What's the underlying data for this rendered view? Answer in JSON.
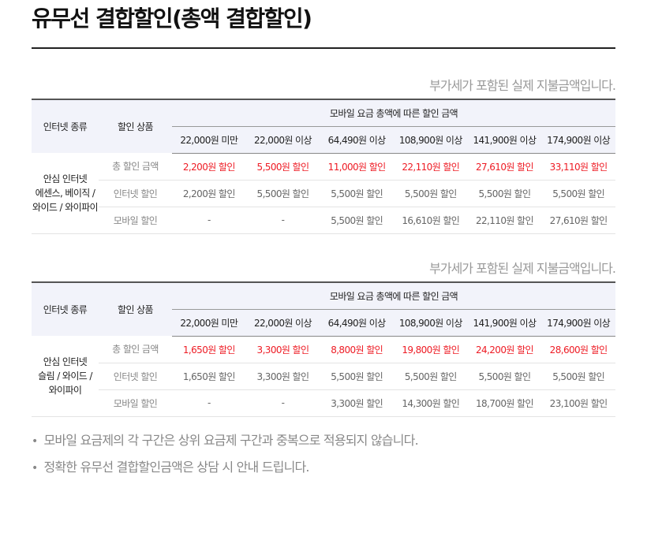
{
  "title": "유무선 결합할인(총액 결합할인)",
  "vat_note": "부가세가 포함된 실제 지불금액입니다.",
  "headers": {
    "type": "인터넷 종류",
    "product": "할인 상품",
    "group": "모바일 요금 총액에 따른 할인 금액",
    "tiers": [
      "22,000원 미만",
      "22,000원 이상",
      "64,490원 이상",
      "108,900원 이상",
      "141,900원 이상",
      "174,900원 이상"
    ]
  },
  "tables": [
    {
      "type_lines": [
        "안심 인터넷",
        "에센스, 베이직 /",
        "와이드 / 와이파이"
      ],
      "rows": [
        {
          "label": "총 할인 금액",
          "values": [
            "2,200원 할인",
            "5,500원 할인",
            "11,000원 할인",
            "22,110원 할인",
            "27,610원 할인",
            "33,110원 할인"
          ]
        },
        {
          "label": "인터넷 할인",
          "values": [
            "2,200원 할인",
            "5,500원 할인",
            "5,500원 할인",
            "5,500원 할인",
            "5,500원 할인",
            "5,500원 할인"
          ]
        },
        {
          "label": "모바일 할인",
          "values": [
            "-",
            "-",
            "5,500원 할인",
            "16,610원 할인",
            "22,110원 할인",
            "27,610원 할인"
          ]
        }
      ]
    },
    {
      "type_lines": [
        "안심 인터넷",
        "슬림 / 와이드 /",
        "와이파이"
      ],
      "rows": [
        {
          "label": "총 할인 금액",
          "values": [
            "1,650원 할인",
            "3,300원 할인",
            "8,800원 할인",
            "19,800원 할인",
            "24,200원 할인",
            "28,600원 할인"
          ]
        },
        {
          "label": "인터넷 할인",
          "values": [
            "1,650원 할인",
            "3,300원 할인",
            "5,500원 할인",
            "5,500원 할인",
            "5,500원 할인",
            "5,500원 할인"
          ]
        },
        {
          "label": "모바일 할인",
          "values": [
            "-",
            "-",
            "3,300원 할인",
            "14,300원 할인",
            "18,700원 할인",
            "23,100원 할인"
          ]
        }
      ]
    }
  ],
  "bullets": [
    "모바일 요금제의 각 구간은 상위 요금제 구간과 중복으로 적용되지 않습니다.",
    "정확한 유무선 결합할인금액은 상담 시 안내 드립니다."
  ],
  "colors": {
    "highlight": "#ee1c25",
    "header_bg": "#f2f3fa"
  }
}
